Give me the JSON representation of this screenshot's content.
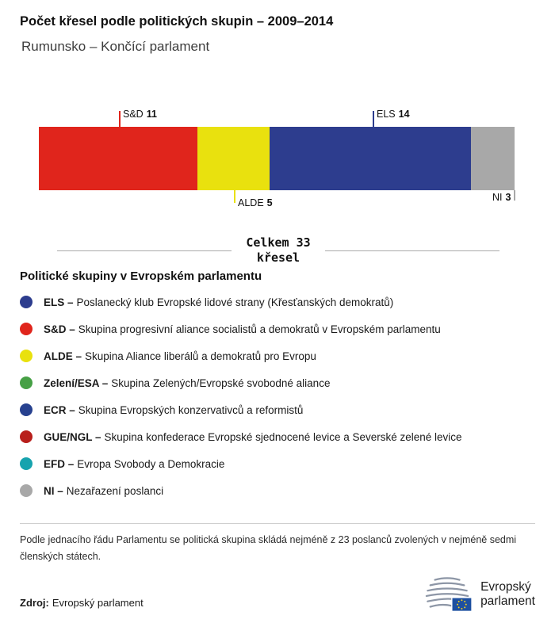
{
  "header": {
    "title": "Počet křesel podle politických skupin – 2009–2014",
    "subtitle": "Rumunsko – Končící parlament"
  },
  "chart_data": {
    "type": "bar",
    "orientation": "horizontal-stacked",
    "title": "Počet křesel podle politických skupin – 2009–2014",
    "subtitle": "Rumunsko – Končící parlament",
    "total": 33,
    "total_label_line1": "Celkem 33",
    "total_label_line2": "křesel",
    "segments": [
      {
        "code": "S&D",
        "seats": 11,
        "color": "#e0251c"
      },
      {
        "code": "ALDE",
        "seats": 5,
        "color": "#e9e10e"
      },
      {
        "code": "ELS",
        "seats": 14,
        "color": "#2d3d8e"
      },
      {
        "code": "NI",
        "seats": 3,
        "color": "#a8a8a8"
      }
    ]
  },
  "legend": {
    "heading": "Politické skupiny v Evropském parlamentu",
    "items": [
      {
        "code": "ELS –",
        "desc": "Poslanecký klub Evropské lidové strany (Křesťanských demokratů)",
        "color": "#2d3d8e"
      },
      {
        "code": "S&D –",
        "desc": "Skupina progresivní aliance socialistů a demokratů v Evropském parlamentu",
        "color": "#e0251c"
      },
      {
        "code": "ALDE –",
        "desc": "Skupina Aliance liberálů a demokratů pro Evropu",
        "color": "#e9e10e"
      },
      {
        "code": "Zelení/ESA –",
        "desc": "Skupina Zelených/Evropské svobodné aliance",
        "color": "#46a045"
      },
      {
        "code": "ECR –",
        "desc": "Skupina Evropských konzervativců a reformistů",
        "color": "#27418f"
      },
      {
        "code": "GUE/NGL –",
        "desc": "Skupina konfederace Evropské sjednocené levice a Severské zelené levice",
        "color": "#b81f1c"
      },
      {
        "code": "EFD –",
        "desc": "Evropa Svobody a Demokracie",
        "color": "#16a3ae"
      },
      {
        "code": "NI –",
        "desc": "Nezařazení poslanci",
        "color": "#a8a8a8"
      }
    ]
  },
  "note": "Podle jednacího řádu Parlamentu se politická skupina skládá nejméně z 23 poslanců zvolených v nejméně sedmi členských státech.",
  "source": {
    "label": "Zdroj:",
    "value": "Evropský parlament"
  },
  "logo": {
    "line1": "Evropský",
    "line2": "parlament"
  }
}
